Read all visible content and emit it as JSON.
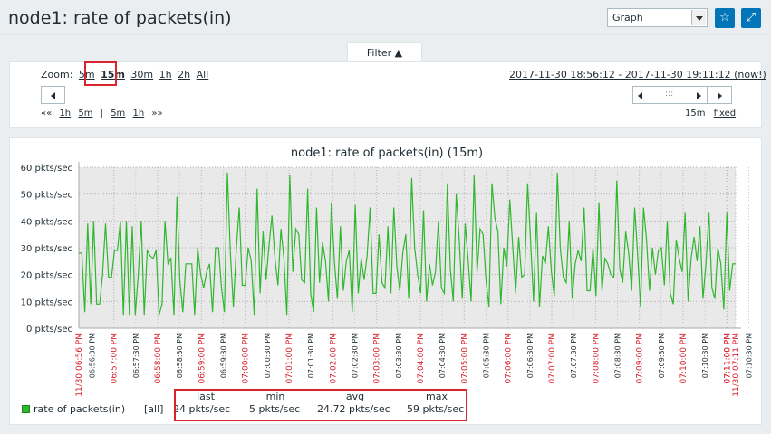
{
  "header": {
    "title": "node1: rate of packets(in)",
    "view_select": "Graph",
    "favorite_icon": "star-icon",
    "fullscreen_icon": "fullscreen-icon"
  },
  "filter": {
    "label": "Filter ▲"
  },
  "zoom": {
    "label": "Zoom:",
    "options": [
      "5m",
      "15m",
      "30m",
      "1h",
      "2h",
      "All"
    ],
    "selected": "15m"
  },
  "date_range": "2017-11-30 18:56:12 - 2017-11-30 19:11:12 (now!)",
  "period_nav": {
    "items": [
      "««",
      "1h",
      "5m",
      "|",
      "5m",
      "1h",
      "»»"
    ]
  },
  "period_right": {
    "duration": "15m",
    "mode": "fixed"
  },
  "chart_data": {
    "type": "line",
    "title": "node1: rate of packets(in) (15m)",
    "ylabel": "",
    "unit": "pkts/sec",
    "ylim": [
      0,
      60
    ],
    "yticks": [
      "0 pkts/sec",
      "10 pkts/sec",
      "20 pkts/sec",
      "30 pkts/sec",
      "40 pkts/sec",
      "50 pkts/sec",
      "60 pkts/sec"
    ],
    "xlim": [
      "18:56:12",
      "19:11:12"
    ],
    "xticks_major": [
      "11/30 06:56 PM",
      "06:57:00 PM",
      "06:58:00 PM",
      "06:59:00 PM",
      "07:00:00 PM",
      "07:01:00 PM",
      "07:02:00 PM",
      "07:03:00 PM",
      "07:04:00 PM",
      "07:05:00 PM",
      "07:06:00 PM",
      "07:07:00 PM",
      "07:08:00 PM",
      "07:09:00 PM",
      "07:10:00 PM",
      "07:11:00 PM",
      "11/30 07:11 PM"
    ],
    "xticks_minor": [
      "06:56:30 PM",
      "06:57:30 PM",
      "06:58:30 PM",
      "06:59:30 PM",
      "07:00:30 PM",
      "07:01:30 PM",
      "07:02:30 PM",
      "07:03:30 PM",
      "07:04:30 PM",
      "07:05:30 PM",
      "07:06:30 PM",
      "07:07:30 PM",
      "07:08:30 PM",
      "07:09:30 PM",
      "07:10:30 PM"
    ],
    "grid": true,
    "legend": "bottom-left",
    "series": [
      {
        "name": "rate of packets(in)",
        "color": "#2fb72f",
        "values": [
          28,
          28,
          6,
          39,
          9,
          40,
          9,
          9,
          20,
          39,
          19,
          19,
          29,
          29,
          40,
          5,
          40,
          5,
          38,
          5,
          20,
          40,
          5,
          29,
          27,
          26,
          29,
          5,
          9,
          40,
          24,
          26,
          5,
          49,
          18,
          6,
          24,
          24,
          24,
          5,
          30,
          20,
          15,
          21,
          24,
          6,
          30,
          30,
          15,
          6,
          58,
          28,
          8,
          30,
          45,
          16,
          16,
          30,
          25,
          5,
          52,
          13,
          36,
          18,
          31,
          42,
          26,
          16,
          37,
          26,
          5,
          57,
          21,
          37,
          35,
          18,
          17,
          52,
          13,
          6,
          45,
          17,
          32,
          25,
          10,
          47,
          25,
          11,
          38,
          14,
          25,
          29,
          6,
          46,
          13,
          26,
          18,
          27,
          45,
          13,
          13,
          35,
          17,
          15,
          38,
          13,
          45,
          23,
          14,
          28,
          35,
          11,
          56,
          30,
          20,
          13,
          44,
          10,
          24,
          16,
          21,
          40,
          15,
          13,
          54,
          22,
          10,
          50,
          33,
          11,
          39,
          25,
          10,
          57,
          21,
          37,
          35,
          18,
          8,
          54,
          41,
          36,
          9,
          30,
          23,
          48,
          30,
          13,
          34,
          19,
          20,
          54,
          33,
          10,
          43,
          8,
          27,
          24,
          38,
          21,
          12,
          58,
          30,
          19,
          17,
          40,
          11,
          24,
          29,
          25,
          45,
          14,
          14,
          30,
          12,
          47,
          14,
          26,
          24,
          20,
          19,
          55,
          22,
          17,
          36,
          28,
          14,
          45,
          28,
          8,
          45,
          33,
          14,
          30,
          20,
          29,
          30,
          16,
          40,
          13,
          9,
          33,
          26,
          21,
          43,
          10,
          26,
          34,
          25,
          38,
          11,
          24,
          43,
          15,
          11,
          30,
          24,
          7,
          43,
          14,
          24,
          24
        ]
      }
    ]
  },
  "legend": {
    "series_name": "rate of packets(in)",
    "filter": "[all]",
    "headers": [
      "last",
      "min",
      "avg",
      "max"
    ],
    "values": [
      "24 pkts/sec",
      "5 pkts/sec",
      "24.72 pkts/sec",
      "59 pkts/sec"
    ]
  }
}
